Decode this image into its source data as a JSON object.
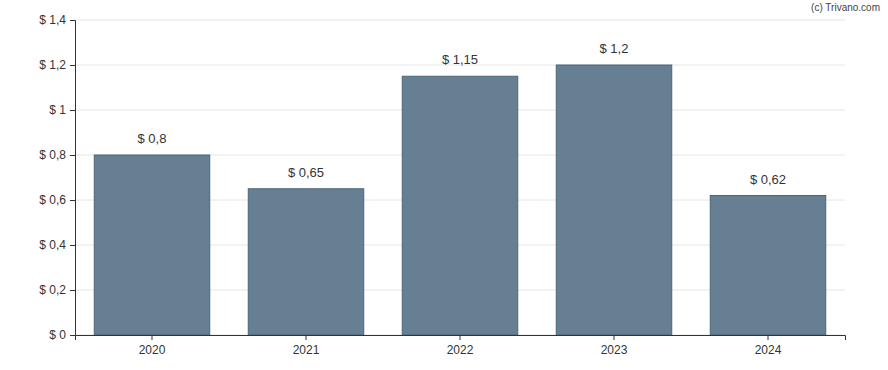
{
  "chart_data": {
    "type": "bar",
    "annotation": "(c) Trivano.com",
    "categories": [
      "2020",
      "2021",
      "2022",
      "2023",
      "2024"
    ],
    "values": [
      0.8,
      0.65,
      1.15,
      1.2,
      0.62
    ],
    "value_labels": [
      "$ 0,8",
      "$ 0,65",
      "$ 1,15",
      "$ 1,2",
      "$ 0,62"
    ],
    "data_labels": true,
    "color": "#667f92",
    "ylim": [
      0,
      1.4
    ],
    "yticks": [
      {
        "value": 0,
        "label": "$ 0"
      },
      {
        "value": 0.2,
        "label": "$ 0,2"
      },
      {
        "value": 0.4,
        "label": "$ 0,4"
      },
      {
        "value": 0.6,
        "label": "$ 0,6"
      },
      {
        "value": 0.8,
        "label": "$ 0,8"
      },
      {
        "value": 1,
        "label": "$ 1"
      },
      {
        "value": 1.2,
        "label": "$ 1,2"
      },
      {
        "value": 1.4,
        "label": "$ 1,4"
      }
    ],
    "grid": true
  }
}
